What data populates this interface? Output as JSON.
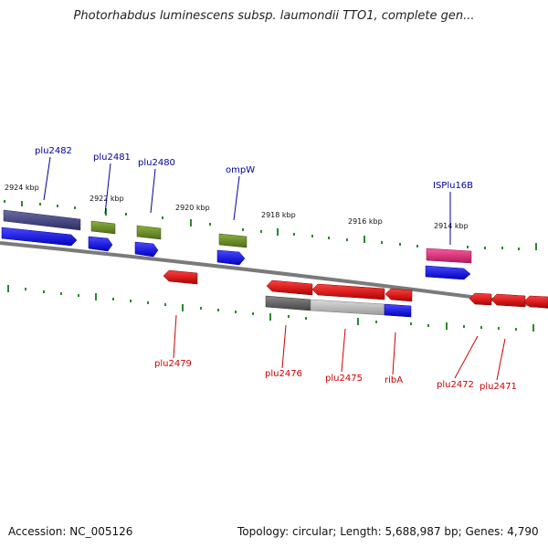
{
  "title": "Photorhabdus luminescens subsp. laumondii TTO1, complete gen...",
  "footer": {
    "accession": "Accession: NC_005126",
    "topology": "Topology: circular; Length: 5,688,987 bp; Genes: 4,790"
  },
  "colors": {
    "blue": "#1a1af0",
    "green": "#6b8e23",
    "purple": "#4a4a8a",
    "red": "#e00000",
    "magenta": "#e0307a",
    "gray_dark": "#6a6a6a",
    "gray_light": "#c0c0c0",
    "label_blue": "#00009c",
    "label_red": "#cc0000",
    "tick_green": "#2a8a2a",
    "backbone": "#808080"
  },
  "kbp_labels": [
    "2924 kbp",
    "2922 kbp",
    "2920 kbp",
    "2918 kbp",
    "2916 kbp",
    "2914 kbp"
  ],
  "gene_labels_top": [
    "plu2482",
    "plu2481",
    "plu2480",
    "ompW",
    "ISPlu16B"
  ],
  "gene_labels_bottom": [
    "plu2479",
    "plu2476",
    "plu2475",
    "ribA",
    "plu2472",
    "plu2471"
  ]
}
